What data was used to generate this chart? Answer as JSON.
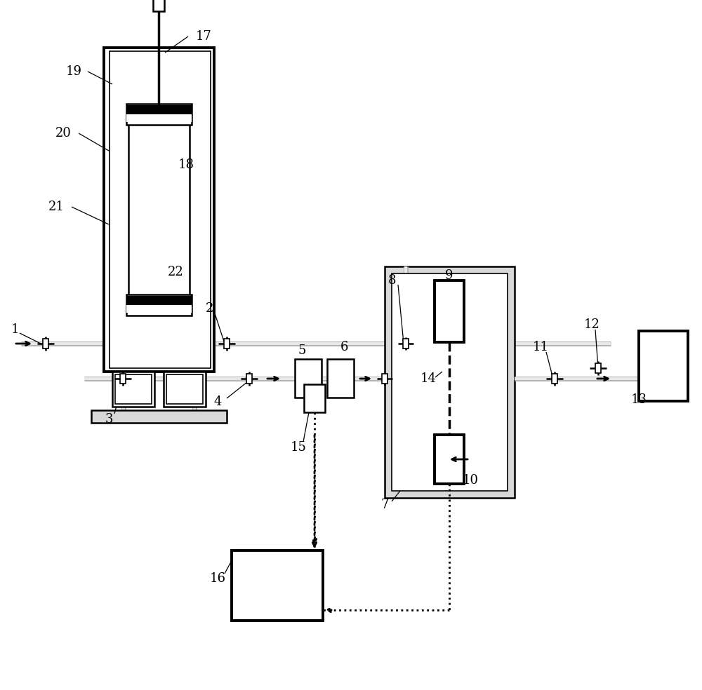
{
  "bg": "#ffffff",
  "lc": "#000000",
  "gc": "#b0b0b0",
  "lgc": "#d8d8d8",
  "lw_thick": 2.8,
  "lw_main": 1.8,
  "lw_thin": 1.2,
  "lw_pipe": 3.5,
  "label_fs": 13
}
